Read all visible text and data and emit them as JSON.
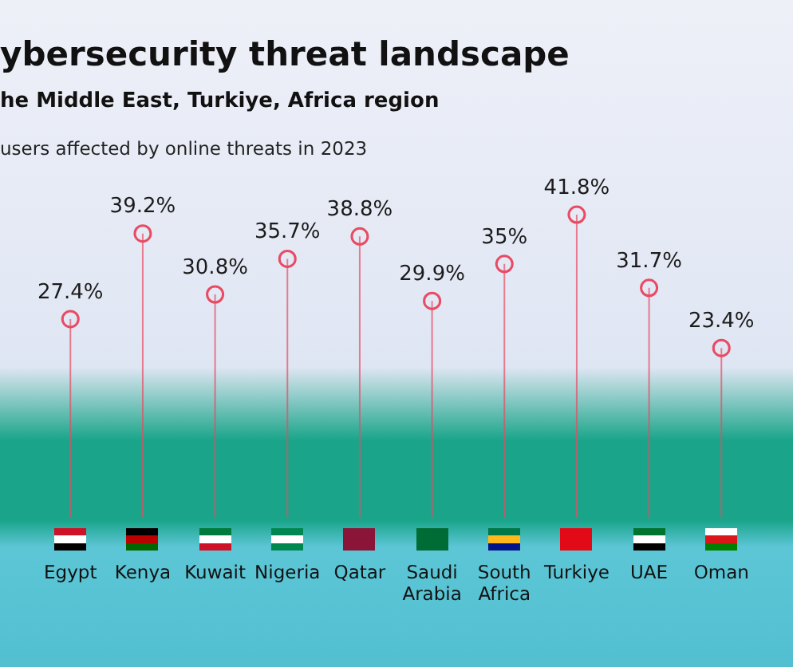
{
  "chart_data": {
    "type": "lollipop",
    "title": "ybersecurity threat landscape",
    "subtitle": "he Middle East, Turkiye, Africa region",
    "annotations": [
      "users affected by online threats in 2023"
    ],
    "categories": [
      "Egypt",
      "Kenya",
      "Kuwait",
      "Nigeria",
      "Qatar",
      "Saudi Arabia",
      "South Africa",
      "Turkiye",
      "UAE",
      "Oman"
    ],
    "values": [
      27.4,
      39.2,
      30.8,
      35.7,
      38.8,
      29.9,
      35,
      41.8,
      31.7,
      23.4
    ],
    "value_labels": [
      "27.4%",
      "39.2%",
      "30.8%",
      "35.7%",
      "38.8%",
      "29.9%",
      "35%",
      "41.8%",
      "31.7%",
      "23.4%"
    ],
    "color": "#ea4a63",
    "marker": "circle",
    "tick_labels": "x",
    "grid": false,
    "legend": false
  }
}
